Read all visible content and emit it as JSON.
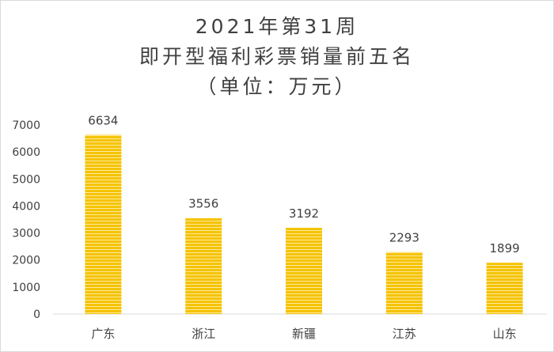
{
  "chart_data": {
    "type": "bar",
    "title_lines": [
      "2021年第31周",
      "即开型福利彩票销量前五名",
      "（单位：万元）"
    ],
    "categories": [
      "广东",
      "浙江",
      "新疆",
      "江苏",
      "山东"
    ],
    "values": [
      6634,
      3556,
      3192,
      2293,
      1899
    ],
    "data_labels": [
      "6634",
      "3556",
      "3192",
      "2293",
      "1899"
    ],
    "xlabel": "",
    "ylabel": "",
    "ylim": [
      0,
      7000
    ],
    "yticks": [
      0,
      1000,
      2000,
      3000,
      4000,
      5000,
      6000,
      7000
    ],
    "ytick_labels": [
      "0",
      "1000",
      "2000",
      "3000",
      "4000",
      "5000",
      "6000",
      "7000"
    ],
    "grid": false,
    "legend": "none",
    "colors": {
      "bar": "#f5c300",
      "bar_stripe": "#fde9a0",
      "axis": "#d9d9d9",
      "text": "#404040"
    }
  }
}
